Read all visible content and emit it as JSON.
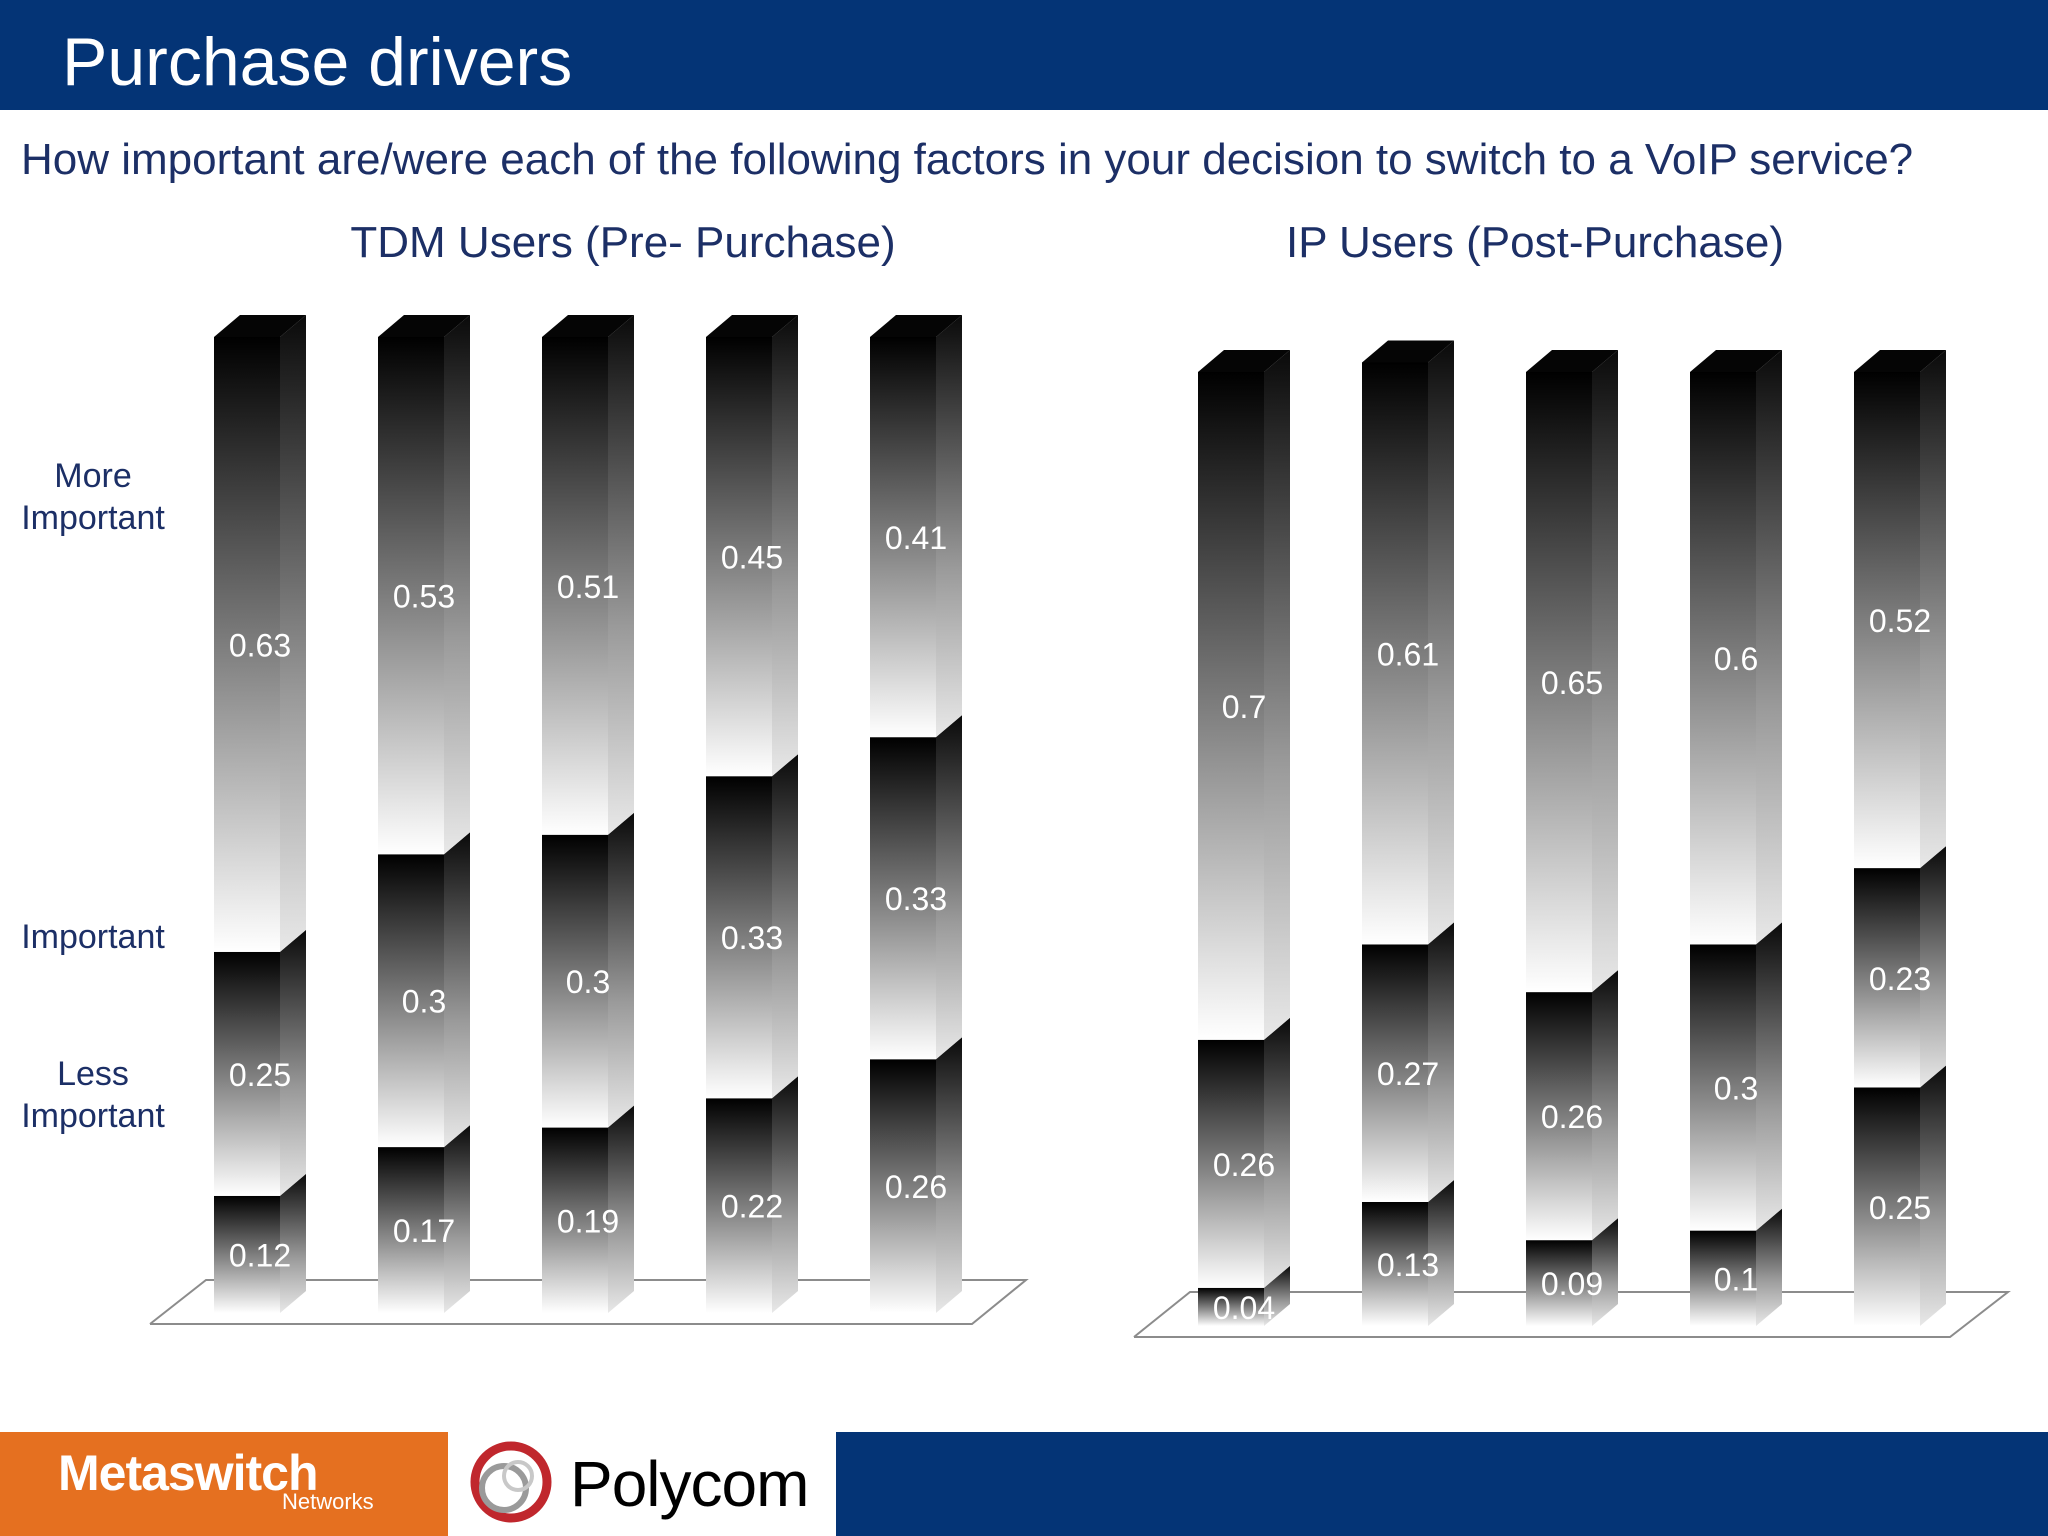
{
  "header": {
    "title": "Purchase drivers"
  },
  "question": "How important are/were each of the following factors in your decision to switch to a VoIP service?",
  "y_labels": {
    "more_important_line1": "More",
    "more_important_line2": "Important",
    "important": "Important",
    "less_important_line1": "Less",
    "less_important_line2": "Important"
  },
  "footer": {
    "metaswitch_logo": "Metaswitch",
    "metaswitch_sub": "Networks",
    "polycom_logo": "Polycom",
    "colors": {
      "orange": "#e57020",
      "blue": "#043476"
    }
  },
  "chart_data": [
    {
      "type": "bar",
      "title": "TDM Users (Pre- Purchase)",
      "stacked": true,
      "categories": [
        "",
        "",
        "",
        "",
        ""
      ],
      "series": [
        {
          "values": [
            0.12,
            0.17,
            0.19,
            0.22,
            0.26
          ]
        },
        {
          "values": [
            0.25,
            0.3,
            0.3,
            0.33,
            0.33
          ]
        },
        {
          "values": [
            0.63,
            0.53,
            0.51,
            0.45,
            0.41
          ]
        }
      ],
      "ylim": [
        0,
        1
      ],
      "grid": false
    },
    {
      "type": "bar",
      "title": "IP Users (Post-Purchase)",
      "stacked": true,
      "categories": [
        "",
        "",
        "",
        "",
        ""
      ],
      "series": [
        {
          "values": [
            0.04,
            0.13,
            0.09,
            0.1,
            0.25
          ]
        },
        {
          "values": [
            0.26,
            0.27,
            0.26,
            0.3,
            0.23
          ]
        },
        {
          "values": [
            0.7,
            0.61,
            0.65,
            0.6,
            0.52
          ]
        }
      ],
      "ylim": [
        0,
        1
      ],
      "grid": false
    }
  ]
}
